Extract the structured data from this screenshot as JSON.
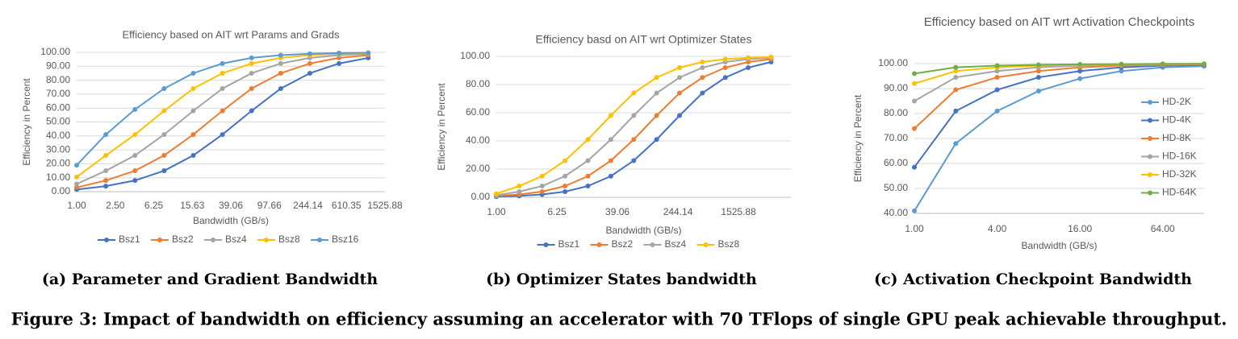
{
  "chart_data": [
    {
      "type": "line",
      "title": "Efficiency based on AIT wrt Params and Grads",
      "x_label": "Bandwidth (GB/s)",
      "y_label": "Efficiency in Percent",
      "caption": "(a) Parameter and Gradient Bandwidth",
      "log_x": true,
      "grid": true,
      "legend": "bottom",
      "x": [
        1,
        2,
        4,
        8,
        16,
        32,
        64,
        128,
        256,
        512,
        1024
      ],
      "xlim": [
        1,
        1525.88
      ],
      "xticks": [
        {
          "value": 1,
          "label": "1.00"
        },
        {
          "value": 2.5,
          "label": "2.50"
        },
        {
          "value": 6.25,
          "label": "6.25"
        },
        {
          "value": 15.63,
          "label": "15.63"
        },
        {
          "value": 39.06,
          "label": "39.06"
        },
        {
          "value": 97.66,
          "label": "97.66"
        },
        {
          "value": 244.14,
          "label": "244.14"
        },
        {
          "value": 610.35,
          "label": "610.35"
        },
        {
          "value": 1525.88,
          "label": "1525.88"
        }
      ],
      "ylim": [
        0,
        100
      ],
      "yticks": [
        {
          "value": 0,
          "label": "0.00"
        },
        {
          "value": 10,
          "label": "10.00"
        },
        {
          "value": 20,
          "label": "20.00"
        },
        {
          "value": 30,
          "label": "30.00"
        },
        {
          "value": 40,
          "label": "40.00"
        },
        {
          "value": 50,
          "label": "50.00"
        },
        {
          "value": 60,
          "label": "60.00"
        },
        {
          "value": 70,
          "label": "70.00"
        },
        {
          "value": 80,
          "label": "80.00"
        },
        {
          "value": 90,
          "label": "90.00"
        },
        {
          "value": 100,
          "label": "100.00"
        }
      ],
      "series": [
        {
          "name": "Bsz1",
          "color": "#4472c4",
          "values": [
            1.5,
            4,
            8,
            15,
            26,
            41,
            58,
            74,
            85,
            92,
            96
          ]
        },
        {
          "name": "Bsz2",
          "color": "#ed7d31",
          "values": [
            3,
            8,
            15,
            26,
            41,
            58,
            74,
            85,
            92,
            96,
            98
          ]
        },
        {
          "name": "Bsz4",
          "color": "#a5a5a5",
          "values": [
            5.5,
            15,
            26,
            41,
            58,
            74,
            85,
            92,
            96,
            98,
            99
          ]
        },
        {
          "name": "Bsz8",
          "color": "#ffc000",
          "values": [
            10.5,
            26,
            41,
            58,
            74,
            85,
            92,
            96,
            98,
            99,
            99.5
          ]
        },
        {
          "name": "Bsz16",
          "color": "#5b9bd5",
          "values": [
            19,
            41,
            59,
            74,
            85,
            92,
            96,
            98,
            99,
            99.5,
            99.7
          ]
        }
      ]
    },
    {
      "type": "line",
      "title": "Efficiency basd on AIT wrt Optimizer States",
      "x_label": "Bandwidth (GB/s)",
      "y_label": "Efficiency in Percent",
      "caption": "(b) Optimizer States bandwidth",
      "log_x": true,
      "grid": true,
      "legend": "bottom",
      "x": [
        1,
        2,
        4,
        8,
        16,
        32,
        64,
        128,
        256,
        512,
        1024,
        2048,
        4096
      ],
      "xlim": [
        1,
        7450
      ],
      "xticks": [
        {
          "value": 1,
          "label": "1.00"
        },
        {
          "value": 6.25,
          "label": "6.25"
        },
        {
          "value": 39.06,
          "label": "39.06"
        },
        {
          "value": 244.14,
          "label": "244.14"
        },
        {
          "value": 1525.88,
          "label": "1525.88"
        }
      ],
      "ylim": [
        0,
        100
      ],
      "yticks": [
        {
          "value": 0,
          "label": "0.00"
        },
        {
          "value": 20,
          "label": "20.00"
        },
        {
          "value": 40,
          "label": "40.00"
        },
        {
          "value": 60,
          "label": "60.00"
        },
        {
          "value": 80,
          "label": "80.00"
        },
        {
          "value": 100,
          "label": "100.00"
        }
      ],
      "series": [
        {
          "name": "Bsz1",
          "color": "#4472c4",
          "values": [
            0.5,
            1,
            2,
            4,
            8,
            15,
            26,
            41,
            58,
            74,
            85,
            92,
            96
          ]
        },
        {
          "name": "Bsz2",
          "color": "#ed7d31",
          "values": [
            1,
            2,
            4,
            8,
            15,
            26,
            41,
            58,
            74,
            85,
            92,
            96,
            98
          ]
        },
        {
          "name": "Bsz4",
          "color": "#a5a5a5",
          "values": [
            1.5,
            4,
            8,
            15,
            26,
            41,
            58,
            74,
            85,
            92,
            96,
            98,
            99
          ]
        },
        {
          "name": "Bsz8",
          "color": "#ffc000",
          "values": [
            2.5,
            8,
            15,
            26,
            41,
            58,
            74,
            85,
            92,
            96,
            98,
            99,
            99.5
          ]
        }
      ]
    },
    {
      "type": "line",
      "title": "Efficiency based on AIT wrt Activation Checkpoints",
      "x_label": "Bandwidth (GB/s)",
      "y_label": "Efficiency in Percent",
      "caption": "(c) Activation Checkpoint Bandwidth",
      "log_x": true,
      "grid": true,
      "legend": "right",
      "x": [
        1,
        2,
        4,
        8,
        16,
        32,
        64,
        128
      ],
      "xlim": [
        1,
        128
      ],
      "xticks": [
        {
          "value": 1,
          "label": "1.00"
        },
        {
          "value": 4,
          "label": "4.00"
        },
        {
          "value": 16,
          "label": "16.00"
        },
        {
          "value": 64,
          "label": "64.00"
        }
      ],
      "ylim": [
        40,
        100
      ],
      "yticks": [
        {
          "value": 40,
          "label": "40.00"
        },
        {
          "value": 50,
          "label": "50.00"
        },
        {
          "value": 60,
          "label": "60.00"
        },
        {
          "value": 70,
          "label": "70.00"
        },
        {
          "value": 80,
          "label": "80.00"
        },
        {
          "value": 90,
          "label": "90.00"
        },
        {
          "value": 100,
          "label": "100.00"
        }
      ],
      "series": [
        {
          "name": "HD-2K",
          "color": "#5b9bd5",
          "values": [
            41,
            68,
            81,
            89,
            94,
            97,
            98.5,
            99
          ]
        },
        {
          "name": "HD-4K",
          "color": "#4472c4",
          "values": [
            58.5,
            81,
            89.5,
            94.5,
            97,
            98.5,
            99.2,
            99.5
          ]
        },
        {
          "name": "HD-8K",
          "color": "#ed7d31",
          "values": [
            74,
            89.5,
            94.5,
            97,
            98.5,
            99.2,
            99.5,
            99.7
          ]
        },
        {
          "name": "HD-16K",
          "color": "#a5a5a5",
          "values": [
            85,
            94.5,
            97,
            98.5,
            99.2,
            99.5,
            99.7,
            99.8
          ]
        },
        {
          "name": "HD-32K",
          "color": "#ffc000",
          "values": [
            92,
            97,
            98.5,
            99.2,
            99.5,
            99.7,
            99.8,
            99.9
          ]
        },
        {
          "name": "HD-64K",
          "color": "#70ad47",
          "values": [
            96,
            98.5,
            99.2,
            99.5,
            99.7,
            99.8,
            99.9,
            99.9
          ]
        }
      ]
    }
  ],
  "figure_caption": "Figure 3: Impact of bandwidth on efficiency assuming an accelerator with 70 TFlops of single GPU peak achievable throughput."
}
